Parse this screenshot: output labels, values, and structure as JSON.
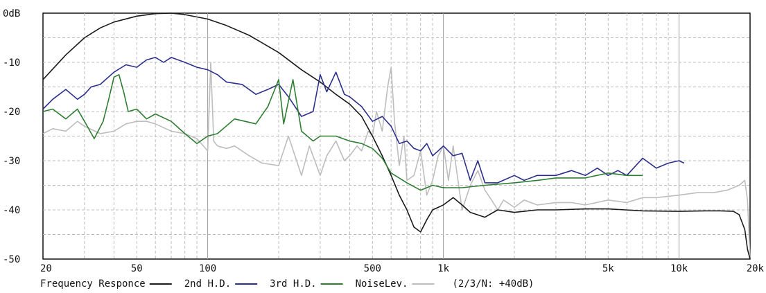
{
  "chart_data": {
    "type": "line",
    "x_scale": "log",
    "xlim": [
      20,
      20000
    ],
    "ylim": [
      -50,
      0
    ],
    "grid": true,
    "y_tick_labels": [
      {
        "value": 0,
        "label": "0dB"
      },
      {
        "value": -10,
        "label": "-10"
      },
      {
        "value": -20,
        "label": "-20"
      },
      {
        "value": -30,
        "label": "-30"
      },
      {
        "value": -40,
        "label": "-40"
      },
      {
        "value": -50,
        "label": "-50"
      }
    ],
    "x_tick_labels": [
      {
        "value": 20,
        "label": "20"
      },
      {
        "value": 50,
        "label": "50"
      },
      {
        "value": 100,
        "label": "100"
      },
      {
        "value": 500,
        "label": "500"
      },
      {
        "value": 1000,
        "label": "1k"
      },
      {
        "value": 5000,
        "label": "5k"
      },
      {
        "value": 10000,
        "label": "10k"
      },
      {
        "value": 20000,
        "label": "20k"
      }
    ],
    "legend": {
      "placement": "bottom",
      "note": "(2/3/N: +40dB)"
    },
    "series": [
      {
        "name": "Frequency Responce",
        "color": "#1a1a1a",
        "x": [
          20,
          25,
          30,
          35,
          40,
          50,
          60,
          70,
          80,
          100,
          120,
          150,
          200,
          250,
          300,
          350,
          400,
          450,
          500,
          550,
          600,
          650,
          700,
          750,
          800,
          850,
          900,
          950,
          1000,
          1100,
          1200,
          1300,
          1500,
          1700,
          2000,
          2500,
          3000,
          4000,
          5000,
          7000,
          10000,
          13000,
          15000,
          17000,
          18000,
          19000,
          19500,
          20000
        ],
        "values": [
          -13.5,
          -8.5,
          -5,
          -3,
          -1.8,
          -0.6,
          -0.1,
          0,
          -0.3,
          -1.2,
          -2.5,
          -4.5,
          -8,
          -11.5,
          -14,
          -16.5,
          -18.5,
          -21,
          -25,
          -29,
          -33,
          -37,
          -40,
          -43.5,
          -44.5,
          -42,
          -40,
          -39.5,
          -39,
          -37.5,
          -39,
          -40.5,
          -41.5,
          -40,
          -40.5,
          -40,
          -40,
          -39.8,
          -39.8,
          -40.2,
          -40.3,
          -40.2,
          -40.2,
          -40.3,
          -41,
          -44,
          -48,
          -50
        ]
      },
      {
        "name": "2nd H.D.",
        "color": "#2b2f8a",
        "x": [
          20,
          22,
          25,
          28,
          30,
          32,
          35,
          40,
          45,
          50,
          55,
          60,
          65,
          70,
          80,
          90,
          100,
          110,
          120,
          140,
          160,
          180,
          200,
          220,
          250,
          280,
          300,
          320,
          350,
          380,
          400,
          450,
          500,
          550,
          600,
          650,
          700,
          750,
          800,
          850,
          900,
          950,
          1000,
          1100,
          1200,
          1300,
          1400,
          1500,
          1700,
          2000,
          2200,
          2500,
          3000,
          3500,
          4000,
          4500,
          5000,
          5500,
          6000,
          7000,
          8000,
          9000,
          10000,
          10500
        ],
        "values": [
          -19.5,
          -17.5,
          -15.5,
          -17.5,
          -16.5,
          -15,
          -14.5,
          -12,
          -10.5,
          -11,
          -9.5,
          -9,
          -10,
          -9,
          -10,
          -11,
          -11.5,
          -12.5,
          -14,
          -14.5,
          -16.5,
          -15.5,
          -14.5,
          -17,
          -21,
          -20,
          -12.5,
          -16,
          -12,
          -16.5,
          -17,
          -19,
          -22,
          -21,
          -23,
          -26.5,
          -26,
          -27.5,
          -28,
          -26.5,
          -29,
          -28,
          -27,
          -29,
          -28.5,
          -34,
          -30,
          -34.5,
          -34.5,
          -33,
          -34,
          -33,
          -33,
          -32,
          -33,
          -31.5,
          -33,
          -32,
          -33,
          -29.5,
          -31.5,
          -30.5,
          -30,
          -30.5
        ]
      },
      {
        "name": "3rd H.D.",
        "color": "#2e7d32",
        "x": [
          20,
          22,
          25,
          28,
          30,
          33,
          36,
          38,
          40,
          42,
          44,
          46,
          50,
          55,
          60,
          70,
          80,
          90,
          100,
          110,
          130,
          160,
          180,
          200,
          210,
          230,
          250,
          280,
          300,
          350,
          400,
          450,
          500,
          550,
          600,
          700,
          800,
          900,
          1000,
          1200,
          1500,
          2000,
          2500,
          3000,
          4000,
          5000,
          6000,
          7000
        ],
        "values": [
          -20,
          -19.5,
          -21.5,
          -19.5,
          -22,
          -25.5,
          -22,
          -17.5,
          -13,
          -12.5,
          -16,
          -20,
          -19.5,
          -21.5,
          -20.5,
          -22,
          -24.5,
          -26.5,
          -25,
          -24.5,
          -21.5,
          -22.5,
          -19,
          -13.5,
          -22.5,
          -13.5,
          -24,
          -26,
          -25,
          -25,
          -26,
          -26.5,
          -27.5,
          -29.5,
          -32.5,
          -34.5,
          -36,
          -35,
          -35.5,
          -35.5,
          -35,
          -34.5,
          -34,
          -33.5,
          -33.5,
          -32.5,
          -33,
          -33
        ]
      },
      {
        "name": "NoiseLev.",
        "color": "#bdbdbd",
        "x": [
          20,
          22,
          25,
          28,
          30,
          35,
          40,
          45,
          50,
          55,
          60,
          70,
          80,
          90,
          100,
          103,
          106,
          110,
          120,
          130,
          150,
          170,
          200,
          220,
          250,
          270,
          300,
          320,
          350,
          380,
          400,
          430,
          450,
          480,
          500,
          520,
          550,
          580,
          600,
          620,
          650,
          680,
          700,
          750,
          800,
          850,
          900,
          950,
          1000,
          1050,
          1100,
          1200,
          1300,
          1400,
          1500,
          1600,
          1700,
          1800,
          2000,
          2200,
          2500,
          3000,
          3500,
          4000,
          5000,
          6000,
          7000,
          8000,
          10000,
          12000,
          14000,
          16000,
          18000,
          19000,
          19500,
          19800,
          20000
        ],
        "values": [
          -24.5,
          -23.5,
          -24,
          -22,
          -23,
          -24.5,
          -24,
          -22.5,
          -22,
          -22,
          -22.5,
          -24,
          -24.5,
          -25.5,
          -28,
          -10,
          -26,
          -27,
          -27.5,
          -27,
          -29,
          -30.5,
          -31,
          -25,
          -33,
          -27,
          -33,
          -29,
          -26,
          -30,
          -29,
          -27,
          -28,
          -24,
          -25,
          -20,
          -24,
          -15,
          -11,
          -22,
          -31,
          -25,
          -34,
          -33,
          -28,
          -37,
          -34,
          -29,
          -27,
          -34,
          -27,
          -40,
          -35,
          -32,
          -36,
          -38,
          -40,
          -38,
          -39.5,
          -38,
          -39,
          -38.5,
          -38.5,
          -39,
          -38,
          -38.5,
          -37.5,
          -37.5,
          -37,
          -36.5,
          -36.5,
          -36,
          -35,
          -34,
          -38,
          -45,
          -50
        ]
      }
    ]
  }
}
